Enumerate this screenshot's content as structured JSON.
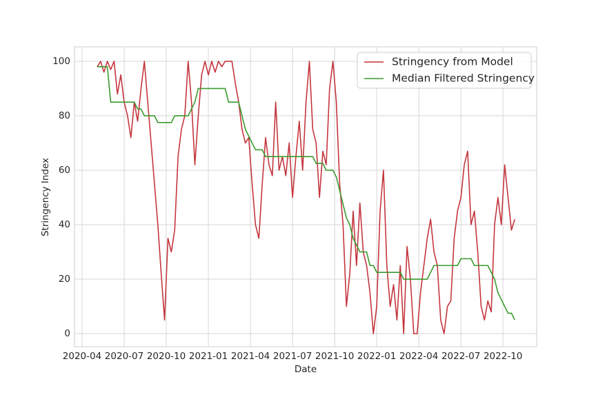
{
  "chart_data": {
    "type": "line",
    "xlabel": "Date",
    "ylabel": "Stringency Index",
    "x": [
      2020.34,
      2020.36,
      2020.38,
      2020.4,
      2020.42,
      2020.44,
      2020.46,
      2020.48,
      2020.5,
      2020.52,
      2020.54,
      2020.56,
      2020.58,
      2020.6,
      2020.62,
      2020.64,
      2020.66,
      2020.68,
      2020.7,
      2020.72,
      2020.74,
      2020.76,
      2020.78,
      2020.8,
      2020.82,
      2020.84,
      2020.86,
      2020.88,
      2020.9,
      2020.92,
      2020.94,
      2020.96,
      2020.98,
      2021.0,
      2021.02,
      2021.04,
      2021.06,
      2021.08,
      2021.1,
      2021.12,
      2021.14,
      2021.16,
      2021.18,
      2021.2,
      2021.22,
      2021.24,
      2021.26,
      2021.28,
      2021.3,
      2021.32,
      2021.34,
      2021.36,
      2021.38,
      2021.4,
      2021.42,
      2021.44,
      2021.46,
      2021.48,
      2021.5,
      2021.52,
      2021.54,
      2021.56,
      2021.58,
      2021.6,
      2021.62,
      2021.64,
      2021.66,
      2021.68,
      2021.7,
      2021.72,
      2021.74,
      2021.76,
      2021.78,
      2021.8,
      2021.82,
      2021.84,
      2021.86,
      2021.88,
      2021.9,
      2021.92,
      2021.94,
      2021.96,
      2021.98,
      2022.0,
      2022.02,
      2022.04,
      2022.06,
      2022.08,
      2022.1,
      2022.12,
      2022.14,
      2022.16,
      2022.18,
      2022.2,
      2022.22,
      2022.24,
      2022.26,
      2022.28,
      2022.3,
      2022.32,
      2022.34,
      2022.36,
      2022.38,
      2022.4,
      2022.42,
      2022.44,
      2022.46,
      2022.48,
      2022.5,
      2022.52,
      2022.54,
      2022.56,
      2022.58,
      2022.6,
      2022.62,
      2022.64,
      2022.66,
      2022.68,
      2022.7,
      2022.72,
      2022.74,
      2022.76,
      2022.78,
      2022.8,
      2022.82
    ],
    "series": [
      {
        "name": "Stringency from Model",
        "color": "#c4353d",
        "values": [
          98,
          100,
          96,
          100,
          97,
          100,
          88,
          95,
          85,
          80,
          72,
          85,
          78,
          90,
          100,
          85,
          70,
          55,
          40,
          22,
          5,
          35,
          30,
          38,
          65,
          75,
          80,
          100,
          85,
          62,
          80,
          95,
          100,
          95,
          100,
          96,
          100,
          98,
          100,
          100,
          100,
          92,
          85,
          75,
          70,
          72,
          55,
          40,
          35,
          55,
          72,
          62,
          58,
          85,
          60,
          65,
          58,
          70,
          50,
          65,
          78,
          60,
          85,
          100,
          75,
          70,
          50,
          67,
          62,
          90,
          100,
          85,
          55,
          40,
          10,
          22,
          45,
          25,
          48,
          30,
          25,
          15,
          0,
          10,
          45,
          60,
          25,
          10,
          18,
          5,
          25,
          0,
          32,
          20,
          0,
          0,
          15,
          25,
          35,
          42,
          30,
          25,
          5,
          0,
          10,
          12,
          35,
          45,
          50,
          62,
          67,
          40,
          45,
          30,
          10,
          5,
          12,
          8,
          40,
          50,
          40,
          62,
          50,
          38,
          42
        ]
      },
      {
        "name": "Median Filtered Stringency",
        "color": "#3a9a2c",
        "values": [
          98,
          98,
          98,
          98,
          85,
          85,
          85,
          85,
          85,
          85,
          85,
          85,
          82.5,
          82.5,
          80,
          80,
          80,
          80,
          77.5,
          77.5,
          77.5,
          77.5,
          77.5,
          80,
          80,
          80,
          80,
          80,
          82.5,
          85,
          90,
          90,
          90,
          90,
          90,
          90,
          90,
          90,
          90,
          85,
          85,
          85,
          85,
          80,
          75,
          72.5,
          70,
          67.5,
          67.5,
          67.5,
          65,
          65,
          65,
          65,
          65,
          65,
          65,
          65,
          65,
          65,
          65,
          65,
          65,
          65,
          65,
          62.5,
          62.5,
          62.5,
          60,
          60,
          60,
          57.5,
          52.5,
          47.5,
          42.5,
          40,
          35,
          32.5,
          30,
          30,
          30,
          25,
          25,
          22.5,
          22.5,
          22.5,
          22.5,
          22.5,
          22.5,
          22.5,
          22.5,
          20,
          20,
          20,
          20,
          20,
          20,
          20,
          20,
          22.5,
          25,
          25,
          25,
          25,
          25,
          25,
          25,
          25,
          27.5,
          27.5,
          27.5,
          27.5,
          25,
          25,
          25,
          25,
          25,
          22.5,
          20,
          15,
          12.5,
          10,
          7.5,
          7.5,
          5
        ]
      }
    ],
    "xlim": [
      2020.205,
      2022.95
    ],
    "xticks": [
      {
        "value": 2020.25,
        "label": "2020-04"
      },
      {
        "value": 2020.5,
        "label": "2020-07"
      },
      {
        "value": 2020.75,
        "label": "2020-10"
      },
      {
        "value": 2021.0,
        "label": "2021-01"
      },
      {
        "value": 2021.25,
        "label": "2021-04"
      },
      {
        "value": 2021.5,
        "label": "2021-07"
      },
      {
        "value": 2021.75,
        "label": "2021-10"
      },
      {
        "value": 2022.0,
        "label": "2022-01"
      },
      {
        "value": 2022.25,
        "label": "2022-04"
      },
      {
        "value": 2022.5,
        "label": "2022-07"
      },
      {
        "value": 2022.75,
        "label": "2022-10"
      }
    ],
    "ylim": [
      -4.8,
      105.3
    ],
    "yticks": [
      0,
      20,
      40,
      60,
      80,
      100
    ],
    "grid": true,
    "legend": "upper right"
  }
}
